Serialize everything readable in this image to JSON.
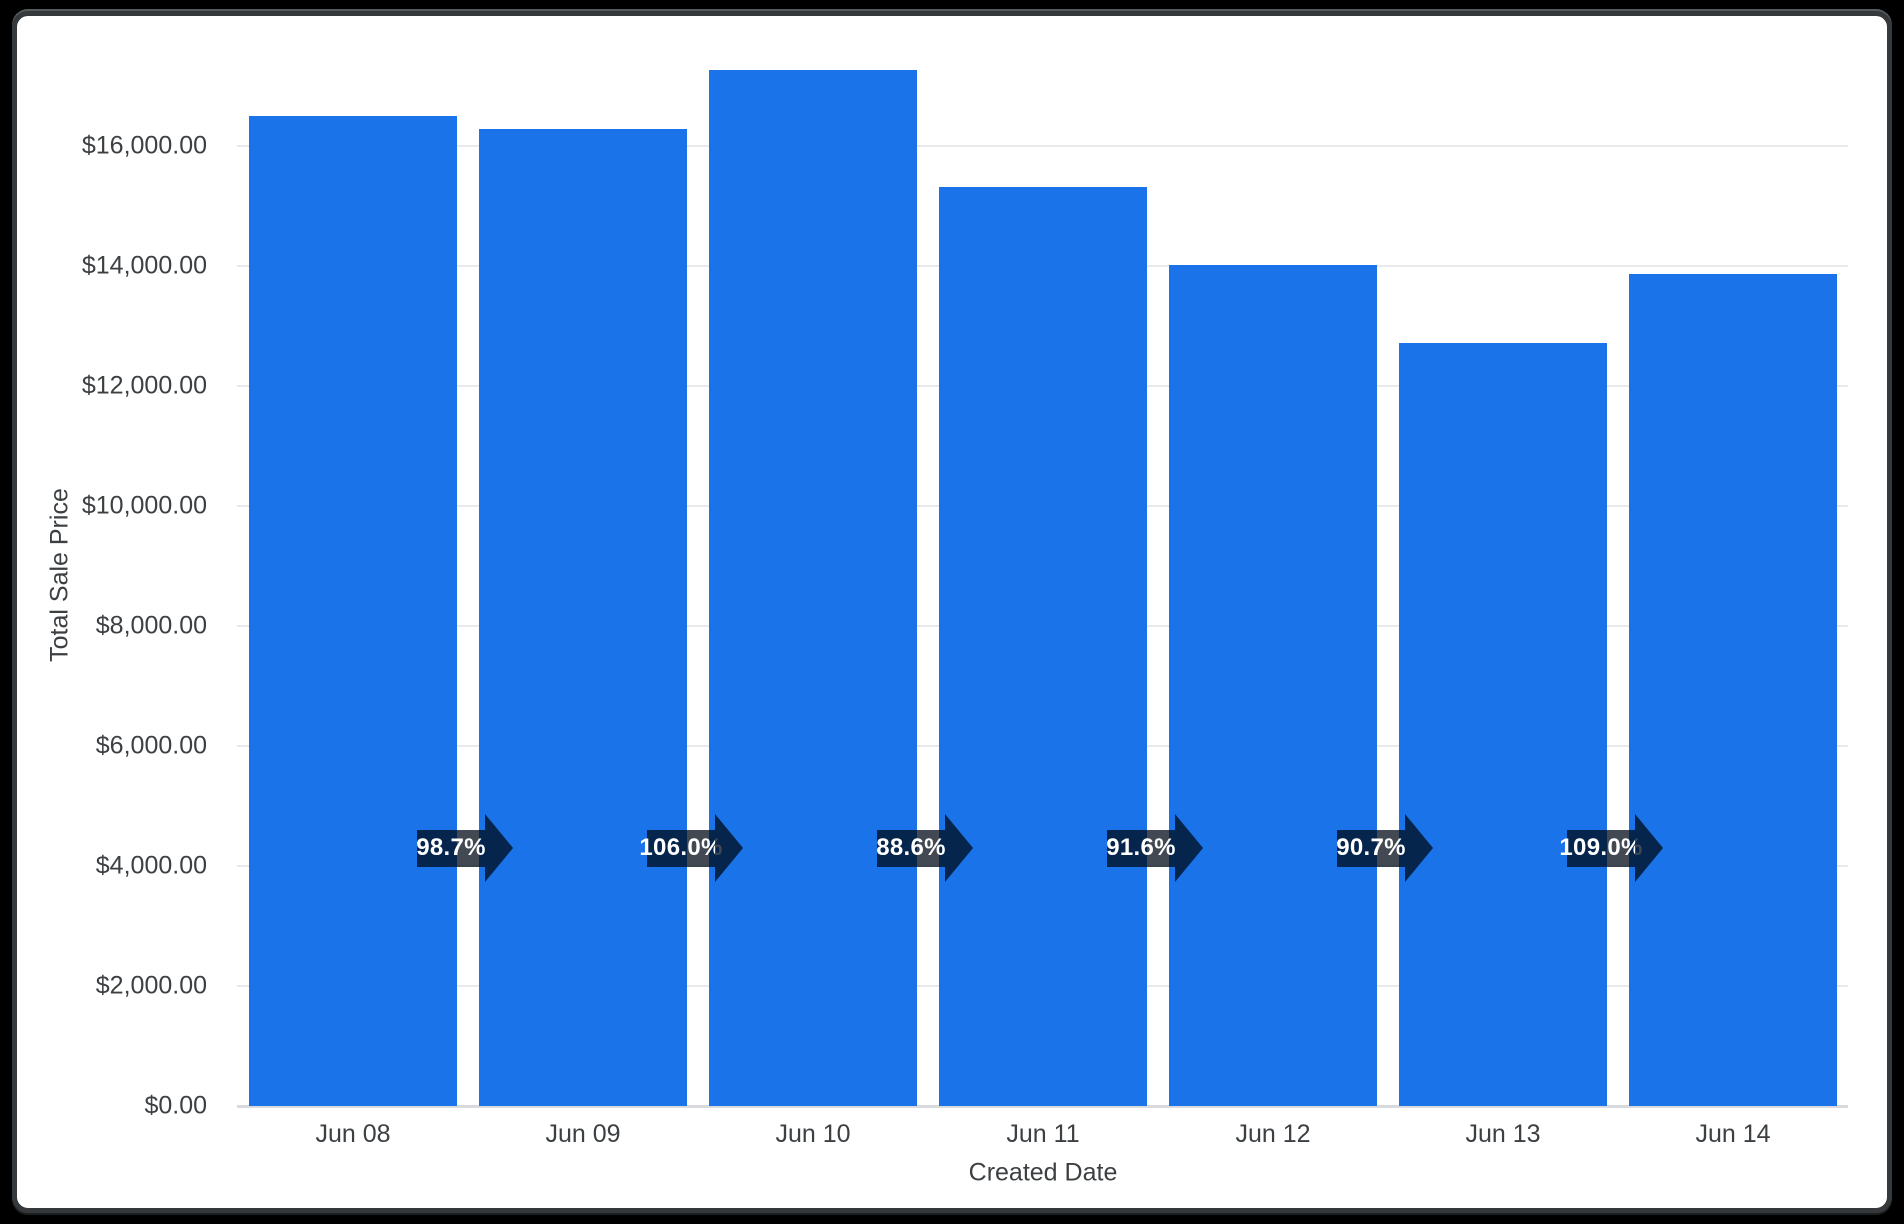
{
  "frame": {
    "page_background": "#000000",
    "card_background": "#ffffff",
    "card_border": "#36393c"
  },
  "chart_data": {
    "type": "bar",
    "title": "",
    "xlabel": "Created Date",
    "ylabel": "Total Sale Price",
    "categories": [
      "Jun 08",
      "Jun 09",
      "Jun 10",
      "Jun 11",
      "Jun 12",
      "Jun 13",
      "Jun 14"
    ],
    "series": [
      {
        "name": "Total Sale Price",
        "values": [
          16500,
          16290,
          17270,
          15310,
          14020,
          12715,
          13860
        ]
      }
    ],
    "y_axis": {
      "tick_values": [
        0,
        2000,
        4000,
        6000,
        8000,
        10000,
        12000,
        14000,
        16000
      ],
      "tick_labels": [
        "$0.00",
        "$2,000.00",
        "$4,000.00",
        "$6,000.00",
        "$8,000.00",
        "$10,000.00",
        "$12,000.00",
        "$14,000.00",
        "$16,000.00"
      ],
      "range": [
        0,
        17500
      ]
    },
    "annotations": {
      "type": "percent-of-previous-arrows",
      "labels": [
        "98.7%",
        "106.0%",
        "88.6%",
        "91.6%",
        "90.7%",
        "109.0%"
      ]
    },
    "grid": "horizontal",
    "legend_position": "none",
    "colors": {
      "bar": "#1a73e8",
      "arrow": "rgba(0,9,22,0.74)",
      "arrow_text": "#ffffff",
      "gridline": "#e9eaec",
      "axis_line": "#d8dade",
      "label_text": "#3c4043"
    }
  }
}
